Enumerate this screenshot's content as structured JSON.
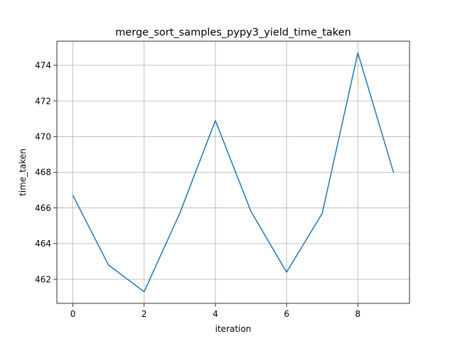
{
  "chart_data": {
    "type": "line",
    "title": "merge_sort_samples_pypy3_yield_time_taken",
    "xlabel": "iteration",
    "ylabel": "time_taken",
    "xlim": [
      -0.45,
      9.45
    ],
    "ylim": [
      460.65,
      475.35
    ],
    "grid": true,
    "x_ticks": [
      0,
      2,
      4,
      6,
      8
    ],
    "y_ticks": [
      462,
      464,
      466,
      468,
      470,
      472,
      474
    ],
    "series": [
      {
        "color": "#1f77b4",
        "x": [
          0,
          1,
          2,
          3,
          4,
          5,
          6,
          7,
          8,
          9
        ],
        "y": [
          466.7,
          462.8,
          461.3,
          465.7,
          470.9,
          465.8,
          462.4,
          465.7,
          474.7,
          468.0
        ]
      }
    ]
  }
}
